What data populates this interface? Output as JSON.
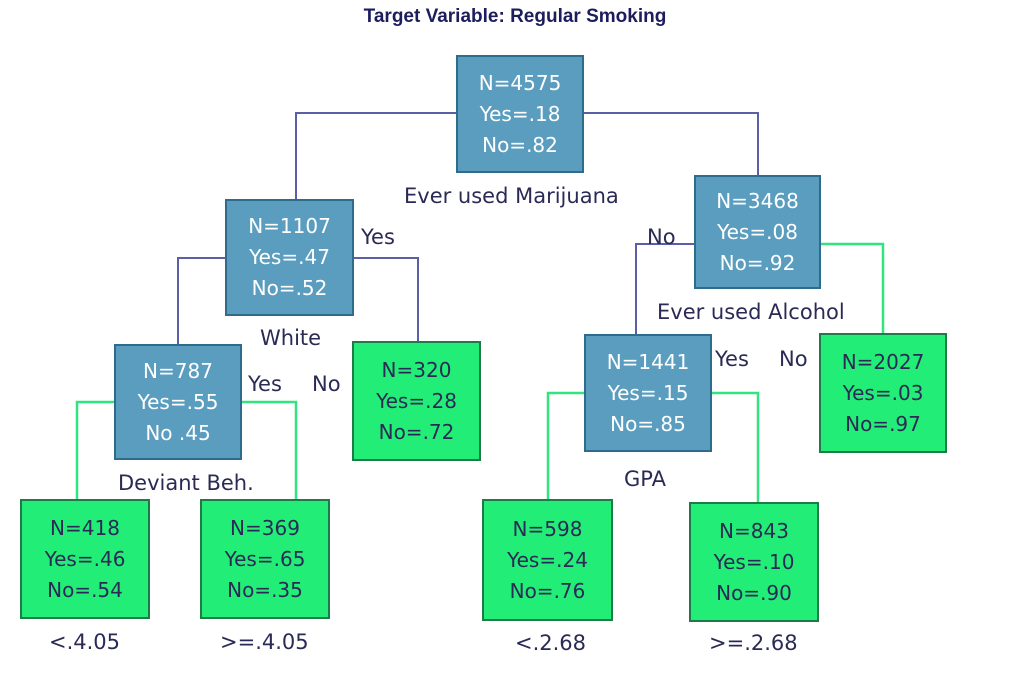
{
  "title": "Target Variable: Regular Smoking",
  "nodes": {
    "root": {
      "n": "N=4575",
      "yes": "Yes=.18",
      "no": "No=.82",
      "split": "Ever used Marijuana"
    },
    "white": {
      "n": "N=1107",
      "yes": "Yes=.47",
      "no": "No=.52",
      "split": "White"
    },
    "alcohol": {
      "n": "N=3468",
      "yes": "Yes=.08",
      "no": "No=.92",
      "split": "Ever used Alcohol"
    },
    "deviant": {
      "n": "N=787",
      "yes": "Yes=.55",
      "no": "No .45",
      "split": "Deviant Beh."
    },
    "leaf320": {
      "n": "N=320",
      "yes": "Yes=.28",
      "no": "No=.72"
    },
    "gpa": {
      "n": "N=1441",
      "yes": "Yes=.15",
      "no": "No=.85",
      "split": "GPA"
    },
    "leaf2027": {
      "n": "N=2027",
      "yes": "Yes=.03",
      "no": "No=.97"
    },
    "leaf418": {
      "n": "N=418",
      "yes": "Yes=.46",
      "no": "No=.54"
    },
    "leaf369": {
      "n": "N=369",
      "yes": "Yes=.65",
      "no": "No=.35"
    },
    "leaf598": {
      "n": "N=598",
      "yes": "Yes=.24",
      "no": "No=.76"
    },
    "leaf843": {
      "n": "N=843",
      "yes": "Yes=.10",
      "no": "No=.90"
    }
  },
  "branch_labels": {
    "white_yes": "Yes",
    "alcohol_no": "No",
    "deviant_yes": "Yes",
    "white_no": "No",
    "gpa_yes": "Yes",
    "alcohol_no_right": "No",
    "lt405": "<.4.05",
    "ge405": ">=.4.05",
    "lt268": "<.2.68",
    "ge268": ">=.2.68"
  },
  "colors": {
    "internal_fill": "#5a9dbf",
    "leaf_fill": "#22ee77",
    "blue_edge": "#5a5fa8",
    "green_edge": "#30e580",
    "text_dark": "#2a2a55"
  }
}
